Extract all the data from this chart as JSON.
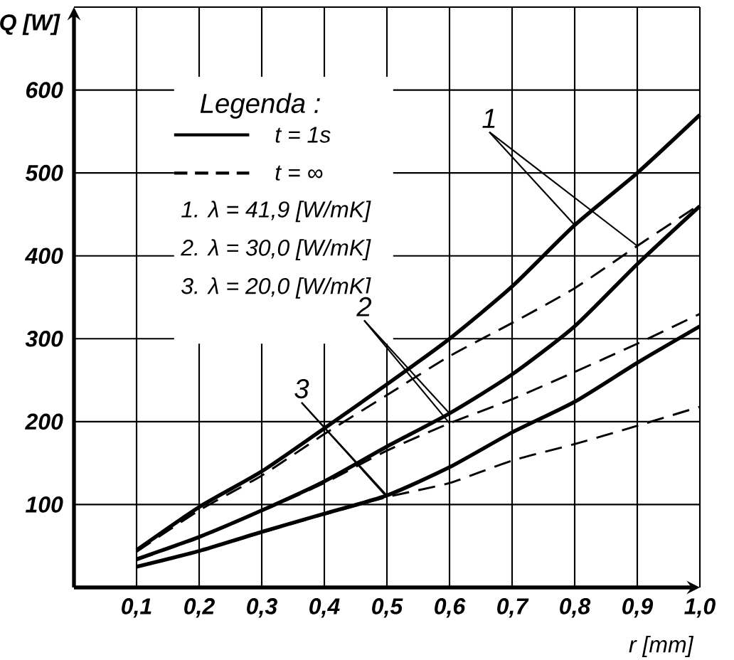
{
  "chart_data": {
    "type": "line",
    "xlabel": "r [mm]",
    "ylabel": "Q [W]",
    "legend_title": "Legenda :",
    "x": [
      0.1,
      0.2,
      0.3,
      0.4,
      0.5,
      0.6,
      0.7,
      0.8,
      0.9,
      1.0
    ],
    "series": [
      {
        "color": "#000000",
        "line_style": "solid",
        "values": [
          45,
          97,
          140,
          192,
          245,
          300,
          363,
          437,
          500,
          570
        ]
      },
      {
        "color": "#000000",
        "line_style": "dashed",
        "values": [
          43,
          93,
          135,
          185,
          232,
          279,
          319,
          361,
          412,
          462
        ]
      },
      {
        "color": "#000000",
        "line_style": "solid",
        "values": [
          34,
          61,
          93,
          128,
          170,
          210,
          257,
          315,
          390,
          460
        ]
      },
      {
        "color": "#000000",
        "line_style": "dashed",
        "values": [
          33,
          60,
          92,
          126,
          165,
          198,
          227,
          260,
          294,
          330
        ]
      },
      {
        "color": "#000000",
        "line_style": "solid",
        "values": [
          25,
          44,
          67,
          89,
          111,
          145,
          187,
          224,
          271,
          315
        ]
      },
      {
        "color": "#000000",
        "line_style": "dashed",
        "values": [
          25,
          44,
          66,
          88,
          109,
          126,
          153,
          173,
          195,
          218
        ]
      }
    ],
    "annotations": [
      "t = 1s",
      "t = ∞",
      "1.  λ = 41,9 [W/mK]",
      "2.  λ = 30,0 [W/mK]",
      "3.  λ = 20,0 [W/mK]",
      {
        "text": "1",
        "x": 0.8,
        "y": 437
      },
      {
        "text": "2",
        "x": 0.6,
        "y": 210
      },
      {
        "text": "3",
        "x": 0.5,
        "y": 111
      }
    ],
    "xlim": [
      0,
      1.0
    ],
    "ylim": [
      0,
      700
    ],
    "xticks": [
      {
        "value": 0.1,
        "label": "0,1"
      },
      {
        "value": 0.2,
        "label": "0,2"
      },
      {
        "value": 0.3,
        "label": "0,3"
      },
      {
        "value": 0.4,
        "label": "0,4"
      },
      {
        "value": 0.5,
        "label": "0,5"
      },
      {
        "value": 0.6,
        "label": "0,6"
      },
      {
        "value": 0.7,
        "label": "0,7"
      },
      {
        "value": 0.8,
        "label": "0,8"
      },
      {
        "value": 0.9,
        "label": "0,9"
      },
      {
        "value": 1.0,
        "label": "1,0"
      }
    ],
    "yticks": [
      100,
      200,
      300,
      400,
      500,
      600,
      {
        "value": 700,
        "label": null
      }
    ],
    "grid": true
  }
}
